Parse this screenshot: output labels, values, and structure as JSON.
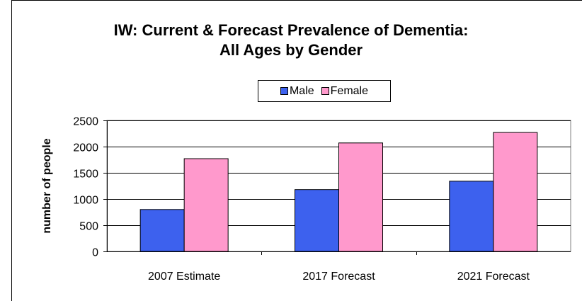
{
  "chart_data": {
    "type": "bar",
    "title_lines": [
      "IW: Current & Forecast Prevalence of Dementia:",
      "All Ages by Gender"
    ],
    "xlabel": "",
    "ylabel": "number of people",
    "categories": [
      "2007 Estimate",
      "2017 Forecast",
      "2021 Forecast"
    ],
    "series": [
      {
        "name": "Male",
        "color": "#3d61ee",
        "values": [
          800,
          1180,
          1340
        ]
      },
      {
        "name": "Female",
        "color": "#ff99cc",
        "values": [
          1770,
          2070,
          2270
        ]
      }
    ],
    "ylim": [
      0,
      2500
    ],
    "yticks": [
      0,
      500,
      1000,
      1500,
      2000,
      2500
    ],
    "grid": true,
    "legend_position": "top"
  }
}
